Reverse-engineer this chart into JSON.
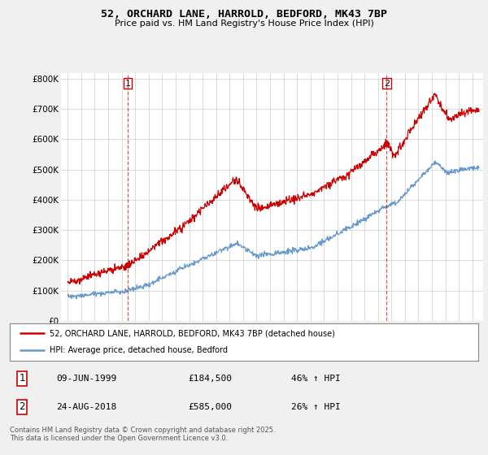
{
  "title1": "52, ORCHARD LANE, HARROLD, BEDFORD, MK43 7BP",
  "title2": "Price paid vs. HM Land Registry's House Price Index (HPI)",
  "bg_color": "#f0f0f0",
  "plot_bg_color": "#ffffff",
  "red_color": "#cc0000",
  "blue_color": "#6699cc",
  "ylim": [
    0,
    820000
  ],
  "yticks": [
    0,
    100000,
    200000,
    300000,
    400000,
    500000,
    600000,
    700000,
    800000
  ],
  "ytick_labels": [
    "£0",
    "£100K",
    "£200K",
    "£300K",
    "£400K",
    "£500K",
    "£600K",
    "£700K",
    "£800K"
  ],
  "purchase1": {
    "date_num": 1999.44,
    "price": 184500,
    "label": "1"
  },
  "purchase2": {
    "date_num": 2018.65,
    "price": 585000,
    "label": "2"
  },
  "legend_line1": "52, ORCHARD LANE, HARROLD, BEDFORD, MK43 7BP (detached house)",
  "legend_line2": "HPI: Average price, detached house, Bedford",
  "table_row1": [
    "1",
    "09-JUN-1999",
    "£184,500",
    "46% ↑ HPI"
  ],
  "table_row2": [
    "2",
    "24-AUG-2018",
    "£585,000",
    "26% ↑ HPI"
  ],
  "footnote": "Contains HM Land Registry data © Crown copyright and database right 2025.\nThis data is licensed under the Open Government Licence v3.0.",
  "xlim_start": 1994.5,
  "xlim_end": 2025.8
}
